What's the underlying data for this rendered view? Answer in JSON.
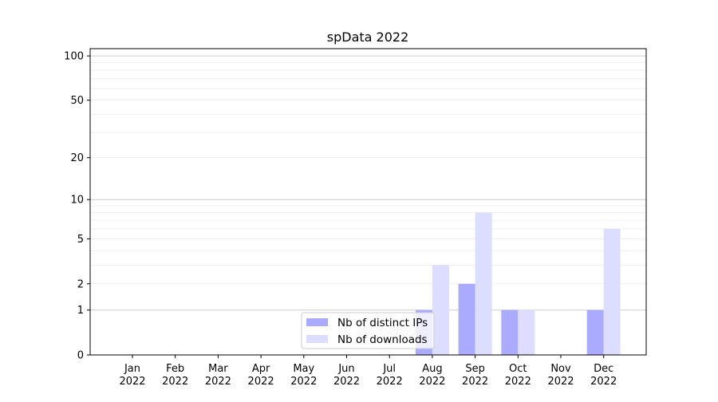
{
  "chart_data": {
    "type": "bar",
    "title": "spData 2022",
    "xlabel": "",
    "ylabel": "",
    "y_scale": "log10(1+y)",
    "ylim": [
      0,
      112
    ],
    "yticks": [
      0,
      1,
      2,
      5,
      10,
      20,
      50,
      100
    ],
    "ytick_labels": [
      "0",
      "1",
      "2",
      "5",
      "10",
      "20",
      "50",
      "100"
    ],
    "grid": true,
    "legend_position": "lower-center",
    "categories": [
      [
        "Jan",
        "2022"
      ],
      [
        "Feb",
        "2022"
      ],
      [
        "Mar",
        "2022"
      ],
      [
        "Apr",
        "2022"
      ],
      [
        "May",
        "2022"
      ],
      [
        "Jun",
        "2022"
      ],
      [
        "Jul",
        "2022"
      ],
      [
        "Aug",
        "2022"
      ],
      [
        "Sep",
        "2022"
      ],
      [
        "Oct",
        "2022"
      ],
      [
        "Nov",
        "2022"
      ],
      [
        "Dec",
        "2022"
      ]
    ],
    "series": [
      {
        "name": "Nb of distinct IPs",
        "color": "#aaaaff",
        "values": [
          0,
          0,
          0,
          0,
          0,
          0,
          0,
          1,
          2,
          1,
          0,
          1
        ]
      },
      {
        "name": "Nb of downloads",
        "color": "#ddddff",
        "values": [
          0,
          0,
          0,
          0,
          0,
          0,
          0,
          3,
          8,
          1,
          0,
          6
        ]
      }
    ]
  }
}
